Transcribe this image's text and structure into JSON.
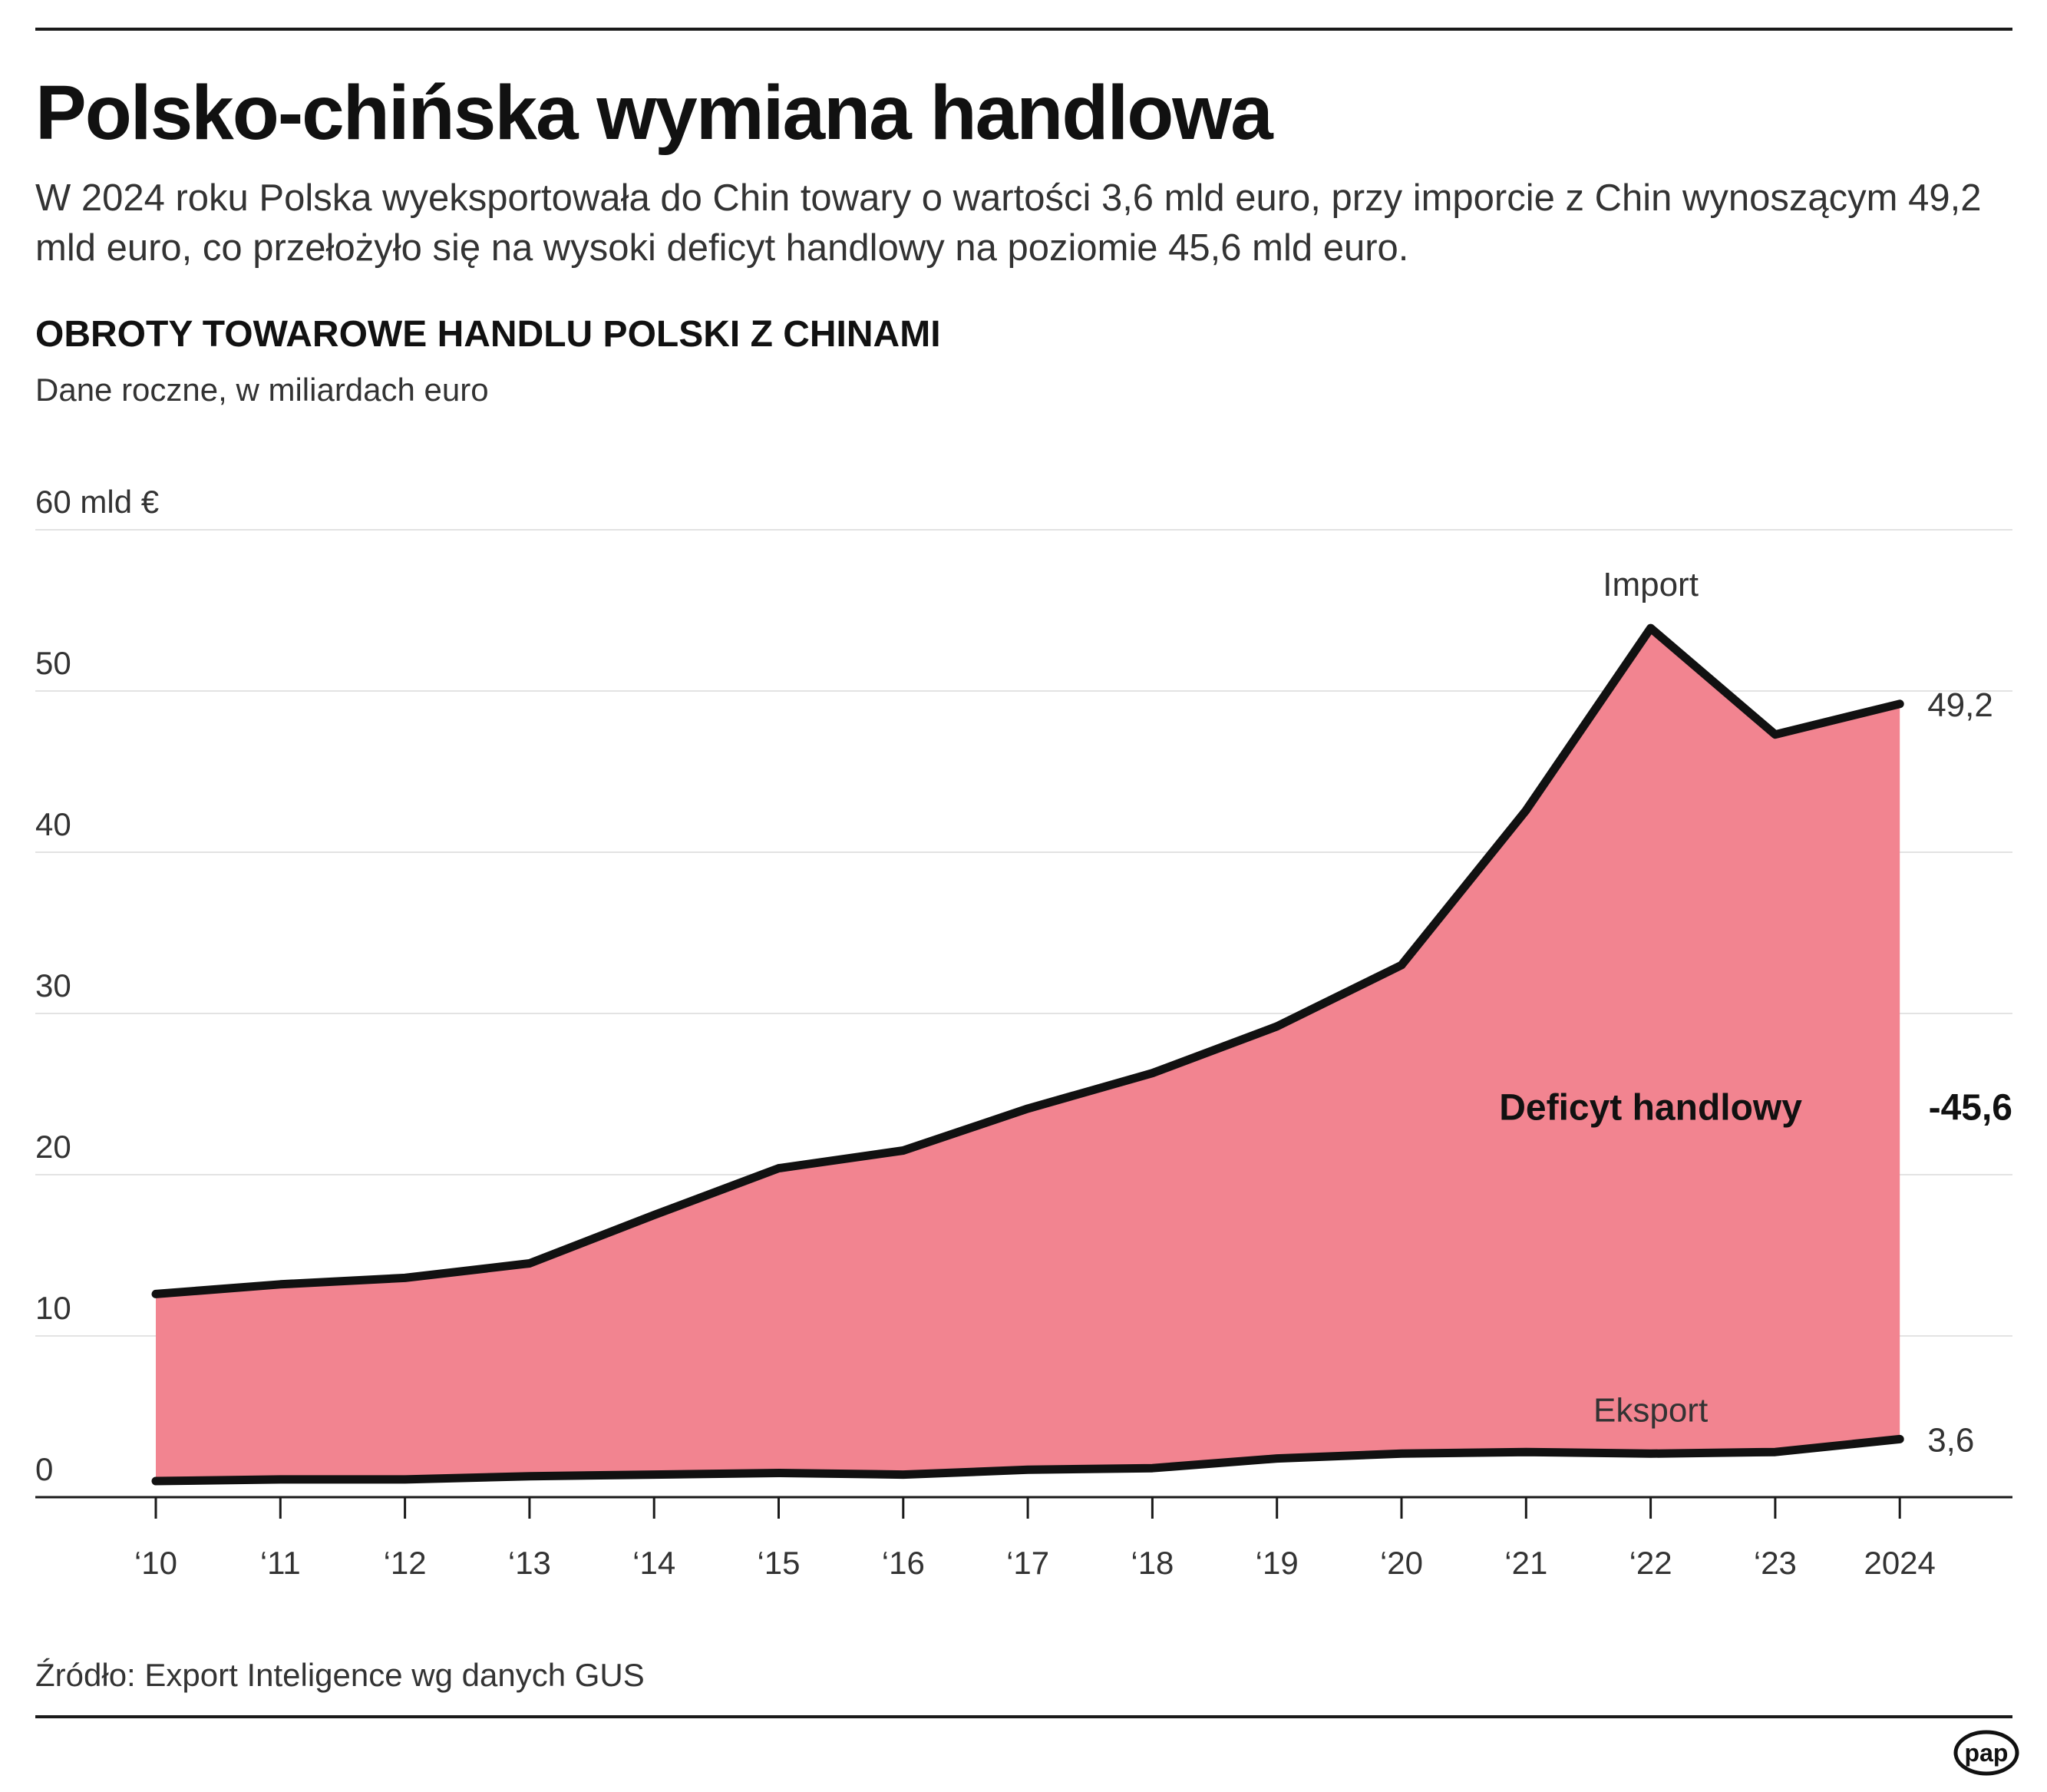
{
  "header": {
    "title": "Polsko-chińska wymiana handlowa",
    "lead": "W 2024 roku Polska wyeksportowała do Chin towary o wartości 3,6 mld euro, przy imporcie z Chin wynoszącym 49,2 mld euro, co przełożyło się na wysoki deficyt handlowy na poziomie 45,6 mld euro."
  },
  "colors": {
    "area_fill": "#f28490",
    "line": "#111111",
    "grid": "#e3e3e3"
  },
  "chart_data": {
    "type": "area",
    "title": "OBROTY TOWAROWE HANDLU POLSKI Z CHINAMI",
    "subtitle": "Dane roczne, w miliardach euro",
    "categories": [
      "‘10",
      "‘11",
      "‘12",
      "‘13",
      "‘14",
      "‘15",
      "‘16",
      "‘17",
      "‘18",
      "‘19",
      "‘20",
      "‘21",
      "‘22",
      "‘23",
      "2024"
    ],
    "series": [
      {
        "name": "Import",
        "values": [
          12.6,
          13.2,
          13.6,
          14.5,
          17.5,
          20.4,
          21.5,
          24.1,
          26.3,
          29.2,
          33.0,
          42.6,
          53.9,
          47.3,
          49.2
        ]
      },
      {
        "name": "Eksport",
        "values": [
          1.0,
          1.1,
          1.1,
          1.3,
          1.4,
          1.5,
          1.4,
          1.7,
          1.8,
          2.4,
          2.7,
          2.8,
          2.7,
          2.8,
          3.6
        ]
      }
    ],
    "ylim": [
      0,
      60
    ],
    "yticks": [
      {
        "value": 0,
        "label": "0"
      },
      {
        "value": 10,
        "label": "10"
      },
      {
        "value": 20,
        "label": "20"
      },
      {
        "value": 30,
        "label": "30"
      },
      {
        "value": 40,
        "label": "40"
      },
      {
        "value": 50,
        "label": "50"
      },
      {
        "value": 60,
        "label": "60 mld €"
      }
    ],
    "grid": true,
    "annotations": {
      "area_label": "Deficyt handlowy",
      "deficit_value": "-45,6",
      "import_end": "49,2",
      "export_end": "3,6"
    }
  },
  "footer": {
    "source": "Źródło: Export Inteligence wg danych GUS",
    "logo_text": "pap"
  }
}
